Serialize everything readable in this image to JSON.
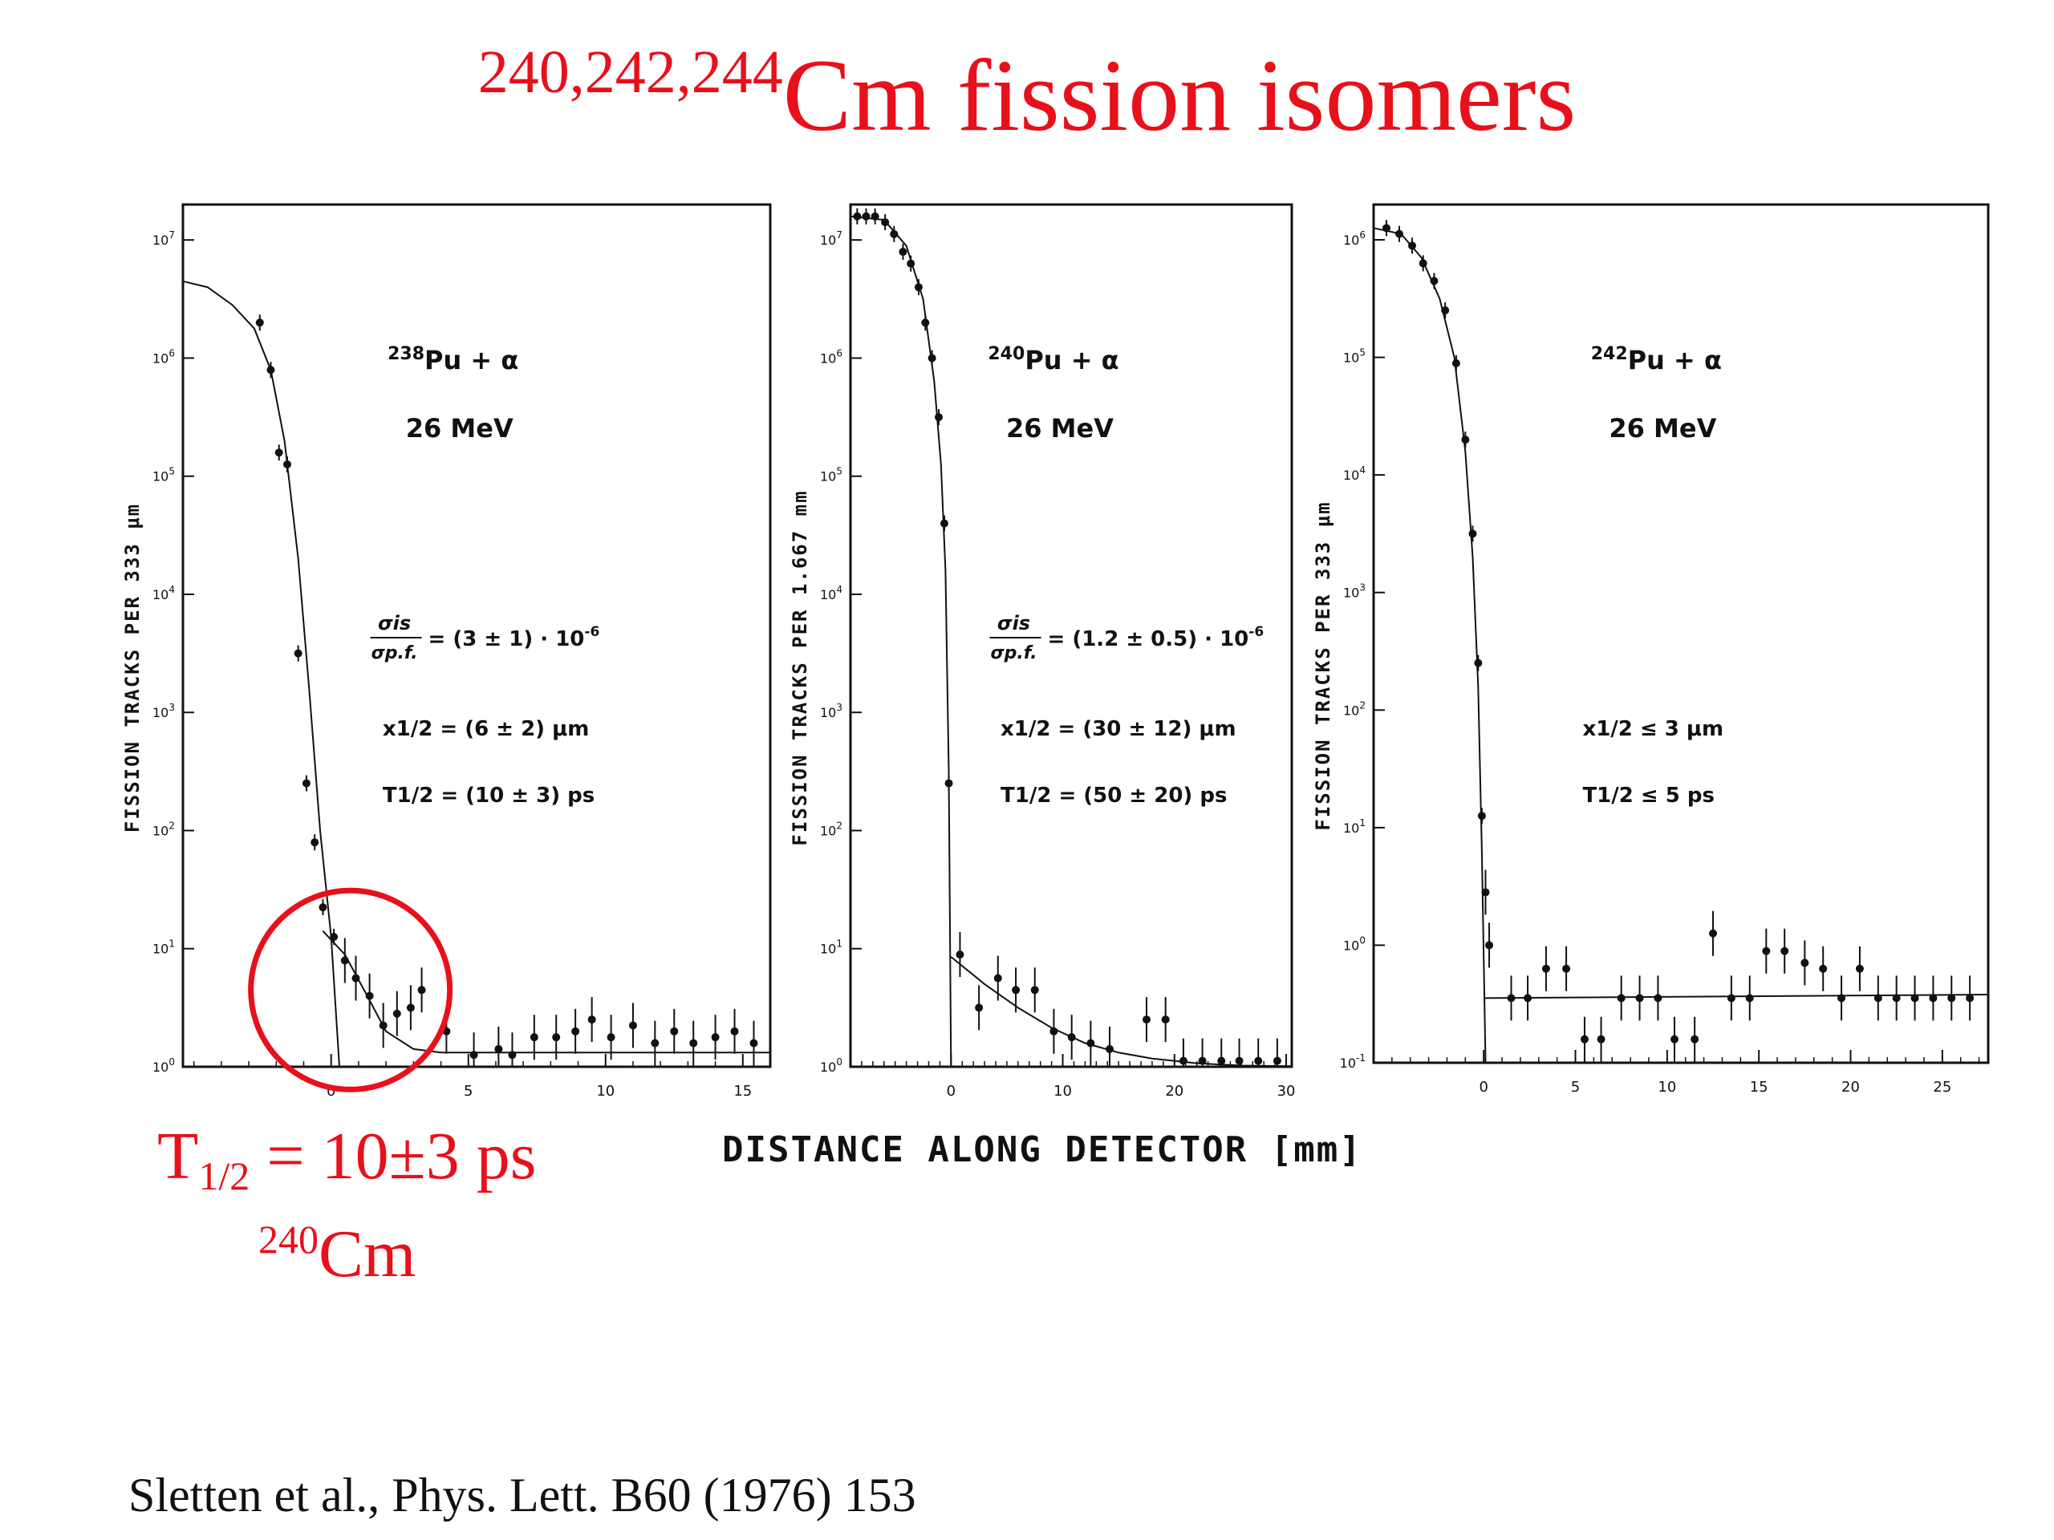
{
  "title": {
    "superscript": "240,242,244",
    "main": "Cm fission isomers"
  },
  "xlabel": "DISTANCE  ALONG  DETECTOR [mm]",
  "annotation": {
    "half_life_main": "T",
    "half_life_sub": "1/2",
    "half_life_value": " = 10±3 ps",
    "isotope_mass": "240",
    "isotope_symbol": "Cm"
  },
  "citation": "Sletten et al., Phys. Lett. B60 (1976) 153",
  "colors": {
    "accent_red": "#e8101a",
    "ink": "#111111"
  },
  "chart_data": [
    {
      "type": "scatter",
      "reaction_mass": "238",
      "reaction": "Pu + α",
      "energy": "26 MeV",
      "ratio_num": "σis",
      "ratio_den": "σp.f.",
      "ratio_value": "= (3 ± 1) · 10",
      "ratio_exp": "-6",
      "x_half": "x1/2 = (6 ± 2)  μm",
      "t_half": "T1/2 = (10 ± 3) ps",
      "ylabel": "FISSION  TRACKS  PER  333 μm",
      "log_scale": true,
      "xlim": [
        -5.4,
        16
      ],
      "ylim_exp": [
        0,
        7.3
      ],
      "xticks": [
        0,
        5,
        10,
        15
      ],
      "yticks_exp": [
        0,
        1,
        2,
        3,
        4,
        5,
        6,
        7
      ],
      "tick_base": "10",
      "highlight_circle": {
        "x": 0.7,
        "y_exp": 0.65
      },
      "points": [
        {
          "x": -2.6,
          "y": 6.3
        },
        {
          "x": -2.2,
          "y": 5.9
        },
        {
          "x": -1.9,
          "y": 5.2
        },
        {
          "x": -1.6,
          "y": 5.1
        },
        {
          "x": -1.2,
          "y": 3.5
        },
        {
          "x": -0.9,
          "y": 2.4
        },
        {
          "x": -0.6,
          "y": 1.9
        },
        {
          "x": -0.3,
          "y": 1.35
        },
        {
          "x": 0.1,
          "y": 1.1
        },
        {
          "x": 0.5,
          "y": 0.9
        },
        {
          "x": 0.9,
          "y": 0.75
        },
        {
          "x": 1.4,
          "y": 0.6
        },
        {
          "x": 1.9,
          "y": 0.35
        },
        {
          "x": 2.4,
          "y": 0.45
        },
        {
          "x": 2.9,
          "y": 0.5
        },
        {
          "x": 3.3,
          "y": 0.65
        },
        {
          "x": 4.2,
          "y": 0.3
        },
        {
          "x": 5.2,
          "y": 0.1
        },
        {
          "x": 6.1,
          "y": 0.15
        },
        {
          "x": 6.6,
          "y": 0.1
        },
        {
          "x": 7.4,
          "y": 0.25
        },
        {
          "x": 8.2,
          "y": 0.25
        },
        {
          "x": 8.9,
          "y": 0.3
        },
        {
          "x": 9.5,
          "y": 0.4
        },
        {
          "x": 10.2,
          "y": 0.25
        },
        {
          "x": 11.0,
          "y": 0.35
        },
        {
          "x": 11.8,
          "y": 0.2
        },
        {
          "x": 12.5,
          "y": 0.3
        },
        {
          "x": 13.2,
          "y": 0.2
        },
        {
          "x": 14.0,
          "y": 0.25
        },
        {
          "x": 14.7,
          "y": 0.3
        },
        {
          "x": 15.4,
          "y": 0.2
        }
      ],
      "curve_prompt": [
        [
          -5.4,
          6.65
        ],
        [
          -4.5,
          6.6
        ],
        [
          -3.6,
          6.45
        ],
        [
          -2.8,
          6.25
        ],
        [
          -2.2,
          5.9
        ],
        [
          -1.7,
          5.3
        ],
        [
          -1.2,
          4.3
        ],
        [
          -0.8,
          3.2
        ],
        [
          -0.4,
          2.0
        ],
        [
          0,
          1.1
        ],
        [
          0.3,
          0
        ]
      ],
      "curve_delayed": [
        [
          -0.3,
          1.15
        ],
        [
          0.5,
          0.95
        ],
        [
          1.2,
          0.65
        ],
        [
          2.0,
          0.3
        ],
        [
          3.0,
          0.15
        ],
        [
          4.0,
          0.12
        ],
        [
          16,
          0.12
        ]
      ]
    },
    {
      "type": "scatter",
      "reaction_mass": "240",
      "reaction": "Pu + α",
      "energy": "26 MeV",
      "ratio_num": "σis",
      "ratio_den": "σp.f.",
      "ratio_value": "= (1.2 ± 0.5) · 10",
      "ratio_exp": "-6",
      "x_half": "x1/2 = (30 ± 12) μm",
      "t_half": "T1/2 = (50 ± 20) ps",
      "ylabel": "FISSION  TRACKS  PER  1.667 mm",
      "log_scale": true,
      "xlim": [
        -9,
        30.5
      ],
      "ylim_exp": [
        0,
        7.3
      ],
      "xticks": [
        0,
        10,
        20,
        30
      ],
      "yticks_exp": [
        0,
        1,
        2,
        3,
        4,
        5,
        6,
        7
      ],
      "tick_base": "10",
      "points": [
        {
          "x": -8.4,
          "y": 7.2
        },
        {
          "x": -7.6,
          "y": 7.2
        },
        {
          "x": -6.8,
          "y": 7.2
        },
        {
          "x": -5.9,
          "y": 7.15
        },
        {
          "x": -5.1,
          "y": 7.05
        },
        {
          "x": -4.3,
          "y": 6.9
        },
        {
          "x": -3.6,
          "y": 6.8
        },
        {
          "x": -2.9,
          "y": 6.6
        },
        {
          "x": -2.3,
          "y": 6.3
        },
        {
          "x": -1.7,
          "y": 6.0
        },
        {
          "x": -1.1,
          "y": 5.5
        },
        {
          "x": -0.6,
          "y": 4.6
        },
        {
          "x": -0.2,
          "y": 2.4
        },
        {
          "x": 0.8,
          "y": 0.95
        },
        {
          "x": 2.5,
          "y": 0.5
        },
        {
          "x": 4.2,
          "y": 0.75
        },
        {
          "x": 5.8,
          "y": 0.65
        },
        {
          "x": 7.5,
          "y": 0.65
        },
        {
          "x": 9.2,
          "y": 0.3
        },
        {
          "x": 10.8,
          "y": 0.25
        },
        {
          "x": 12.5,
          "y": 0.2
        },
        {
          "x": 14.2,
          "y": 0.15
        },
        {
          "x": 17.5,
          "y": 0.4
        },
        {
          "x": 19.2,
          "y": 0.4
        },
        {
          "x": 20.8,
          "y": 0.05
        },
        {
          "x": 22.5,
          "y": 0.05
        },
        {
          "x": 24.2,
          "y": 0.05
        },
        {
          "x": 25.8,
          "y": 0.05
        },
        {
          "x": 27.5,
          "y": 0.05
        },
        {
          "x": 29.2,
          "y": 0.05
        }
      ],
      "curve_prompt": [
        [
          -9,
          7.2
        ],
        [
          -6,
          7.17
        ],
        [
          -4,
          6.95
        ],
        [
          -2.5,
          6.5
        ],
        [
          -1.5,
          5.8
        ],
        [
          -0.9,
          5.1
        ],
        [
          -0.5,
          4.2
        ],
        [
          -0.2,
          2.5
        ],
        [
          0,
          0
        ]
      ],
      "curve_delayed": [
        [
          0,
          0.93
        ],
        [
          3,
          0.7
        ],
        [
          6,
          0.5
        ],
        [
          9,
          0.33
        ],
        [
          12,
          0.2
        ],
        [
          15,
          0.12
        ],
        [
          18,
          0.07
        ],
        [
          22,
          0.03
        ],
        [
          26,
          0.01
        ],
        [
          30.5,
          0.005
        ]
      ]
    },
    {
      "type": "scatter",
      "reaction_mass": "242",
      "reaction": "Pu + α",
      "energy": "26 MeV",
      "x_half": "x1/2 ≤ 3 μm",
      "t_half": "T1/2 ≤ 5 ps",
      "ylabel": "FISSION  TRACKS  PER  333 μm",
      "log_scale": true,
      "xlim": [
        -6,
        27.5
      ],
      "ylim_exp": [
        -1,
        6.3
      ],
      "xticks": [
        0,
        5,
        10,
        15,
        20,
        25
      ],
      "yticks_exp": [
        -1,
        0,
        1,
        2,
        3,
        4,
        5,
        6
      ],
      "tick_base": "10",
      "points": [
        {
          "x": -5.3,
          "y": 6.1
        },
        {
          "x": -4.6,
          "y": 6.05
        },
        {
          "x": -3.9,
          "y": 5.95
        },
        {
          "x": -3.3,
          "y": 5.8
        },
        {
          "x": -2.7,
          "y": 5.65
        },
        {
          "x": -2.1,
          "y": 5.4
        },
        {
          "x": -1.5,
          "y": 4.95
        },
        {
          "x": -1.0,
          "y": 4.3
        },
        {
          "x": -0.6,
          "y": 3.5
        },
        {
          "x": -0.3,
          "y": 2.4
        },
        {
          "x": -0.1,
          "y": 1.1
        },
        {
          "x": 0.1,
          "y": 0.45
        },
        {
          "x": 0.3,
          "y": 0.0
        },
        {
          "x": 1.5,
          "y": -0.45
        },
        {
          "x": 2.4,
          "y": -0.45
        },
        {
          "x": 3.4,
          "y": -0.2
        },
        {
          "x": 4.5,
          "y": -0.2
        },
        {
          "x": 5.5,
          "y": -0.8
        },
        {
          "x": 6.4,
          "y": -0.8
        },
        {
          "x": 7.5,
          "y": -0.45
        },
        {
          "x": 8.5,
          "y": -0.45
        },
        {
          "x": 9.5,
          "y": -0.45
        },
        {
          "x": 10.4,
          "y": -0.8
        },
        {
          "x": 11.5,
          "y": -0.8
        },
        {
          "x": 12.5,
          "y": 0.1
        },
        {
          "x": 13.5,
          "y": -0.45
        },
        {
          "x": 14.5,
          "y": -0.45
        },
        {
          "x": 15.4,
          "y": -0.05
        },
        {
          "x": 16.4,
          "y": -0.05
        },
        {
          "x": 17.5,
          "y": -0.15
        },
        {
          "x": 18.5,
          "y": -0.2
        },
        {
          "x": 19.5,
          "y": -0.45
        },
        {
          "x": 20.5,
          "y": -0.2
        },
        {
          "x": 21.5,
          "y": -0.45
        },
        {
          "x": 22.5,
          "y": -0.45
        },
        {
          "x": 23.5,
          "y": -0.45
        },
        {
          "x": 24.5,
          "y": -0.45
        },
        {
          "x": 25.5,
          "y": -0.45
        },
        {
          "x": 26.5,
          "y": -0.45
        }
      ],
      "curve_prompt": [
        [
          -6,
          6.1
        ],
        [
          -4.5,
          6.05
        ],
        [
          -3.4,
          5.85
        ],
        [
          -2.4,
          5.5
        ],
        [
          -1.6,
          5.0
        ],
        [
          -1.0,
          4.2
        ],
        [
          -0.6,
          3.3
        ],
        [
          -0.3,
          2.2
        ],
        [
          -0.1,
          0.8
        ],
        [
          0.1,
          -1
        ]
      ],
      "curve_delayed": [
        [
          0,
          -0.45
        ],
        [
          27.5,
          -0.42
        ]
      ]
    }
  ]
}
